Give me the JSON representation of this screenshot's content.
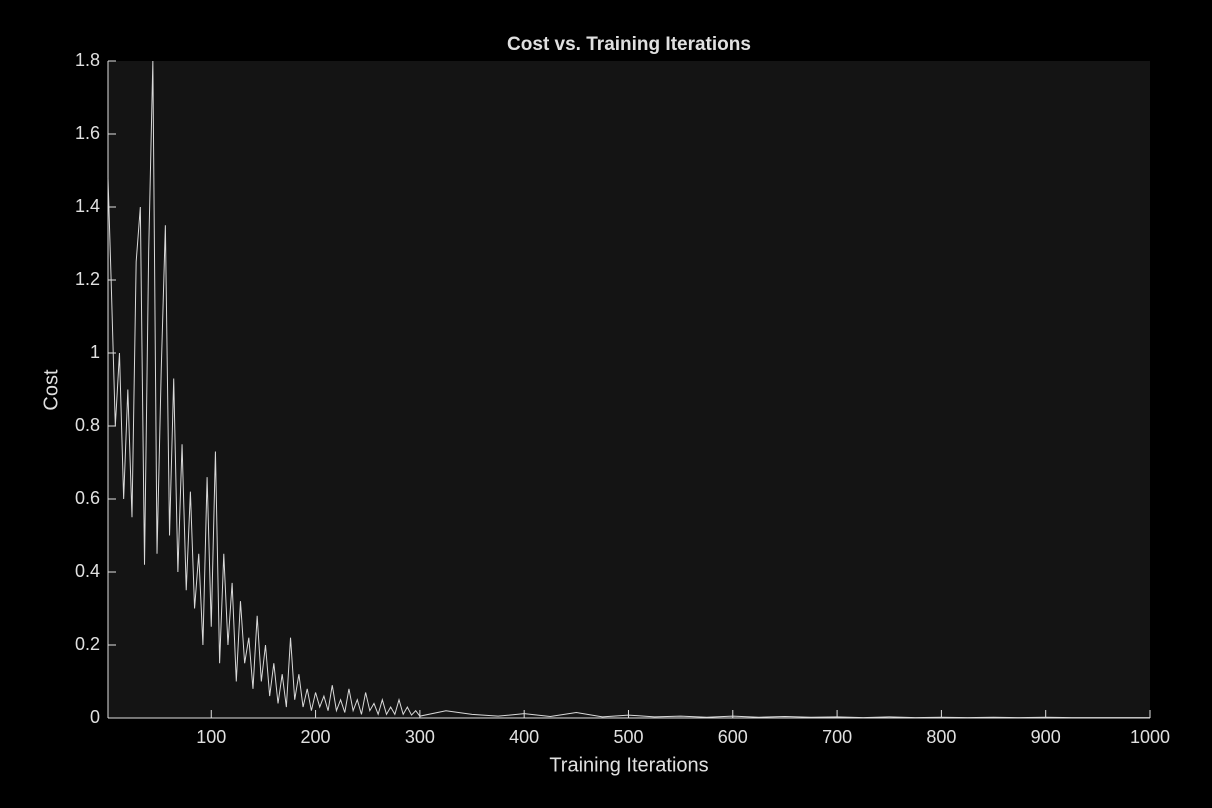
{
  "chart_data": {
    "type": "line",
    "title": "Cost vs. Training Iterations",
    "x_label": "Training Iterations",
    "y_label": "Cost",
    "x": [
      1,
      4,
      8,
      12,
      16,
      20,
      24,
      28,
      32,
      36,
      40,
      44,
      48,
      52,
      56,
      60,
      64,
      68,
      72,
      76,
      80,
      84,
      88,
      92,
      96,
      100,
      104,
      108,
      112,
      116,
      120,
      124,
      128,
      132,
      136,
      140,
      144,
      148,
      152,
      156,
      160,
      164,
      168,
      172,
      176,
      180,
      184,
      188,
      192,
      196,
      200,
      204,
      208,
      212,
      216,
      220,
      224,
      228,
      232,
      236,
      240,
      244,
      248,
      252,
      256,
      260,
      264,
      268,
      272,
      276,
      280,
      284,
      288,
      292,
      296,
      300,
      325,
      350,
      375,
      400,
      425,
      450,
      475,
      500,
      525,
      550,
      575,
      600,
      625,
      650,
      675,
      700,
      725,
      750,
      775,
      800,
      825,
      850,
      875,
      900,
      925,
      950,
      975,
      1000
    ],
    "series": [
      {
        "name": "Cost",
        "color": "#d9d9d9",
        "values": [
          1.48,
          1.2,
          0.8,
          1.0,
          0.6,
          0.9,
          0.55,
          1.25,
          1.4,
          0.42,
          1.28,
          1.8,
          0.45,
          0.95,
          1.35,
          0.5,
          0.93,
          0.4,
          0.75,
          0.35,
          0.62,
          0.3,
          0.45,
          0.2,
          0.66,
          0.25,
          0.73,
          0.15,
          0.45,
          0.2,
          0.37,
          0.1,
          0.32,
          0.15,
          0.22,
          0.08,
          0.28,
          0.1,
          0.2,
          0.06,
          0.15,
          0.04,
          0.12,
          0.03,
          0.22,
          0.05,
          0.12,
          0.03,
          0.08,
          0.02,
          0.07,
          0.03,
          0.06,
          0.02,
          0.09,
          0.02,
          0.05,
          0.015,
          0.08,
          0.02,
          0.05,
          0.01,
          0.07,
          0.02,
          0.04,
          0.01,
          0.05,
          0.01,
          0.03,
          0.01,
          0.05,
          0.01,
          0.03,
          0.008,
          0.02,
          0.005,
          0.02,
          0.01,
          0.005,
          0.012,
          0.004,
          0.015,
          0.003,
          0.008,
          0.003,
          0.005,
          0.002,
          0.005,
          0.002,
          0.004,
          0.002,
          0.003,
          0.001,
          0.003,
          0.001,
          0.002,
          0.001,
          0.002,
          0.001,
          0.002,
          0.001,
          0.001,
          0.001,
          0.001
        ]
      }
    ],
    "xlim": [
      1,
      1000
    ],
    "ylim": [
      0,
      1.8
    ],
    "xticks": [
      100,
      200,
      300,
      400,
      500,
      600,
      700,
      800,
      900,
      1000
    ],
    "yticks": [
      0,
      0.2,
      0.4,
      0.6,
      0.8,
      1,
      1.2,
      1.4,
      1.6,
      1.8
    ],
    "grid": false
  }
}
